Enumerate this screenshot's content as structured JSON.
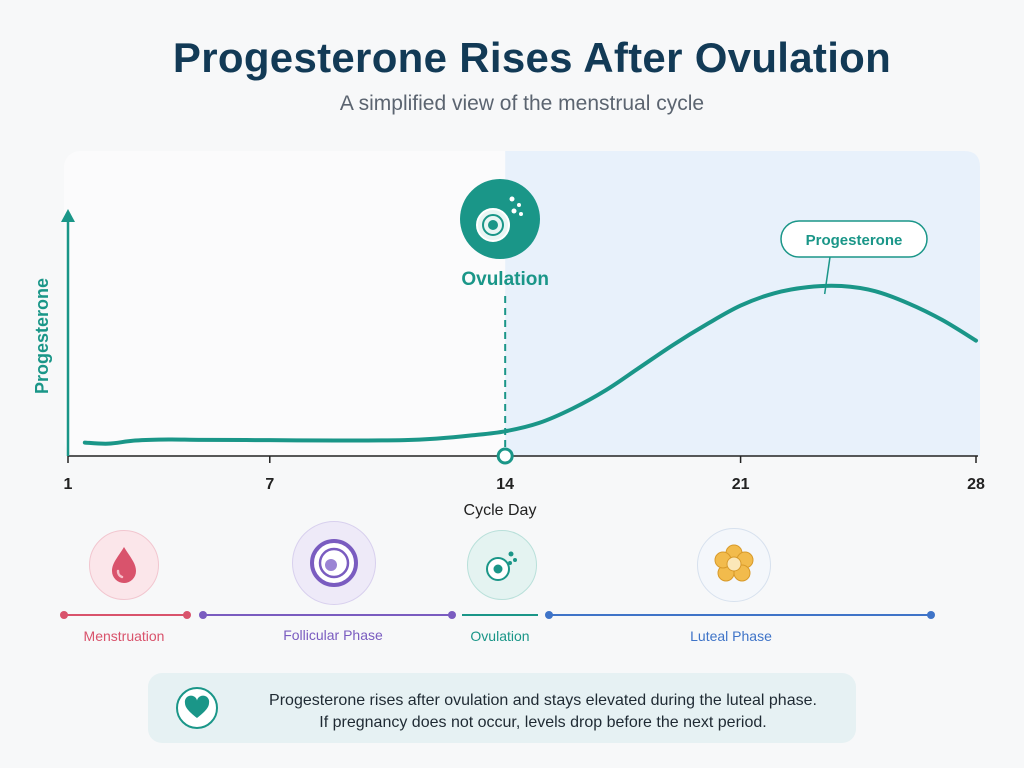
{
  "title": "Progesterone Rises After Ovulation",
  "subtitle": "A simplified view of the menstrual cycle",
  "chart_data": {
    "type": "line",
    "xlabel": "Cycle Day",
    "ylabel": "Progesterone",
    "x_ticks": [
      1,
      7,
      14,
      21,
      28
    ],
    "x_tick_labels": [
      "1",
      "7",
      "14",
      "21",
      "28"
    ],
    "xlim": [
      1,
      28
    ],
    "ylim": [
      0,
      10
    ],
    "grid": false,
    "series": [
      {
        "name": "Progesterone",
        "x": [
          1.5,
          2.2,
          3,
          4,
          5,
          7,
          9,
          11,
          12,
          13,
          14,
          15,
          16,
          17,
          18,
          19,
          20,
          21,
          22,
          23,
          24,
          25,
          26,
          27,
          28
        ],
        "y": [
          0.65,
          0.6,
          0.75,
          0.8,
          0.78,
          0.77,
          0.75,
          0.77,
          0.85,
          1.0,
          1.2,
          1.6,
          2.3,
          3.2,
          4.3,
          5.4,
          6.4,
          7.3,
          7.9,
          8.2,
          8.25,
          8.0,
          7.4,
          6.6,
          5.6
        ],
        "color": "#1a9688"
      }
    ],
    "annotations": [
      {
        "x": 14,
        "label": "Ovulation",
        "style": "dashed-vertical"
      },
      {
        "x": 23.5,
        "label": "Progesterone",
        "style": "callout"
      }
    ],
    "shaded_region": {
      "from": 14,
      "to": 28,
      "color": "#e8f1fb"
    }
  },
  "phases": [
    {
      "label": "Menstruation",
      "color": "#d9536c",
      "icon": "blood-drop-icon"
    },
    {
      "label": "Follicular Phase",
      "color": "#7a5cc0",
      "icon": "follicle-icon"
    },
    {
      "label": "Ovulation",
      "color": "#1a9688",
      "icon": "egg-icon"
    },
    {
      "label": "Luteal Phase",
      "color": "#3f74c8",
      "icon": "corpus-luteum-icon"
    }
  ],
  "note": {
    "line1": "Progesterone rises after ovulation and stays elevated during the luteal phase.",
    "line2": "If pregnancy does not occur, levels drop before the next period.",
    "icon": "heart-icon"
  },
  "colors": {
    "accent": "#1a9688",
    "title": "#123a56",
    "luteal_shade": "#e8f1fb"
  }
}
